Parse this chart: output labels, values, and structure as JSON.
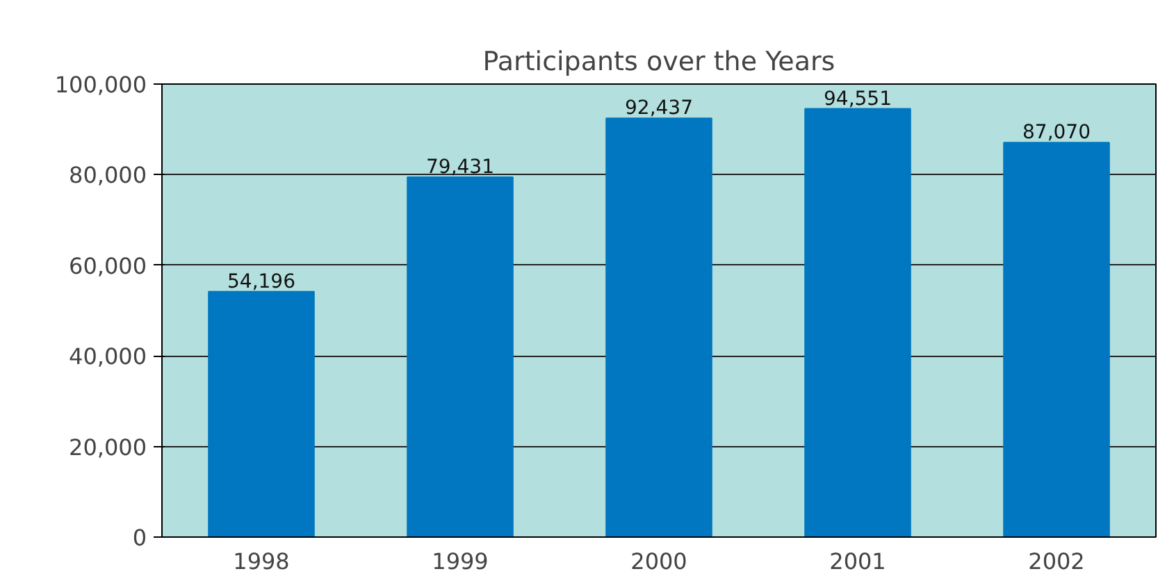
{
  "chart_data": {
    "type": "bar",
    "title": "Participants over the Years",
    "categories": [
      "1998",
      "1999",
      "2000",
      "2001",
      "2002"
    ],
    "values": [
      54196,
      79431,
      92437,
      94551,
      87070
    ],
    "color": "#0077c0",
    "ylim": [
      0,
      100000
    ],
    "yticks": [
      {
        "value": 0,
        "label": "0"
      },
      {
        "value": 20000,
        "label": "20,000"
      },
      {
        "value": 40000,
        "label": "40,000"
      },
      {
        "value": 60000,
        "label": "60,000"
      },
      {
        "value": 80000,
        "label": "80,000"
      },
      {
        "value": 100000,
        "label": "100,000"
      }
    ],
    "value_labels": [
      "54,196",
      "79,431",
      "92,437",
      "94,551",
      "87,070"
    ],
    "grid": "y"
  }
}
